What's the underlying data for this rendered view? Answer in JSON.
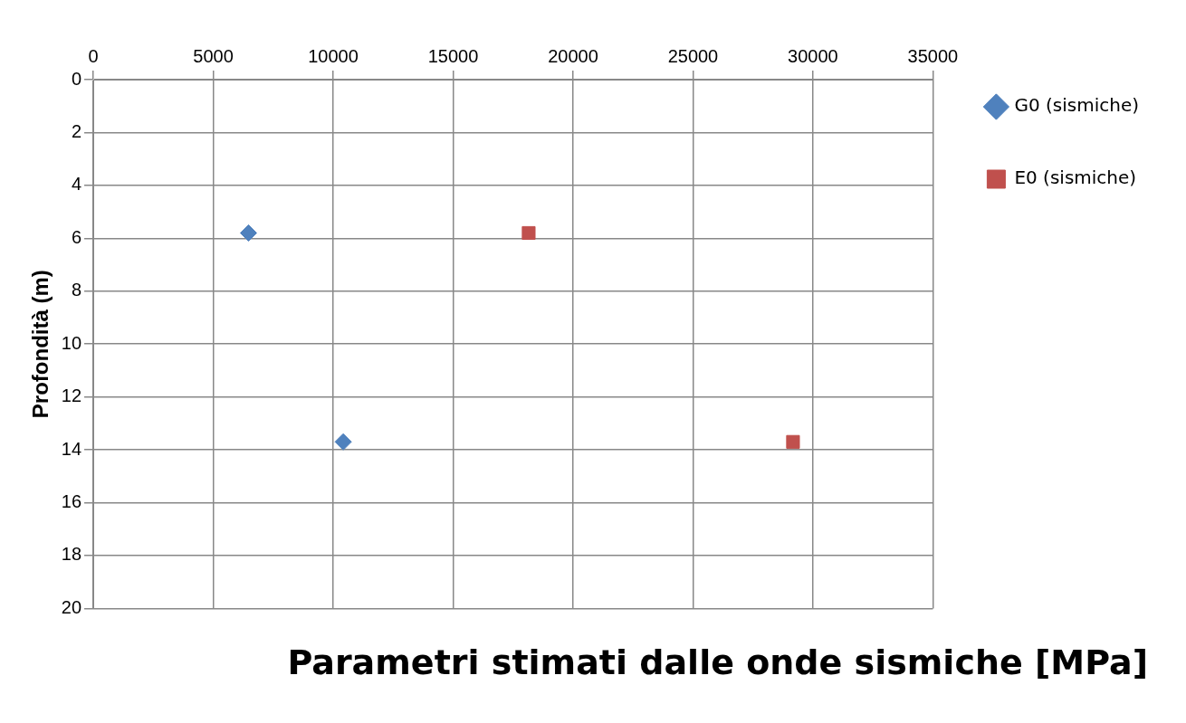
{
  "chart_data": {
    "type": "scatter",
    "xlabel": "Parametri stimati dalle onde sismiche [MPa]",
    "ylabel": "Profondità (m)",
    "xlim": [
      0,
      35000
    ],
    "xticks": [
      0,
      5000,
      10000,
      15000,
      20000,
      25000,
      30000,
      35000
    ],
    "ylim": [
      20,
      0
    ],
    "yticks": [
      0,
      2,
      4,
      6,
      8,
      10,
      12,
      14,
      16,
      18,
      20
    ],
    "grid": true,
    "legend": "top right",
    "series": [
      {
        "name": "G0 (sismiche)",
        "color": "#4f81bd",
        "marker": "diamond",
        "x": [
          6470,
          10420
        ],
        "values": [
          5.8,
          13.7
        ]
      },
      {
        "name": "E0 (sismiche)",
        "color": "#c0504d",
        "marker": "square",
        "x": [
          18150,
          29170
        ],
        "values": [
          5.8,
          13.7
        ]
      }
    ]
  }
}
